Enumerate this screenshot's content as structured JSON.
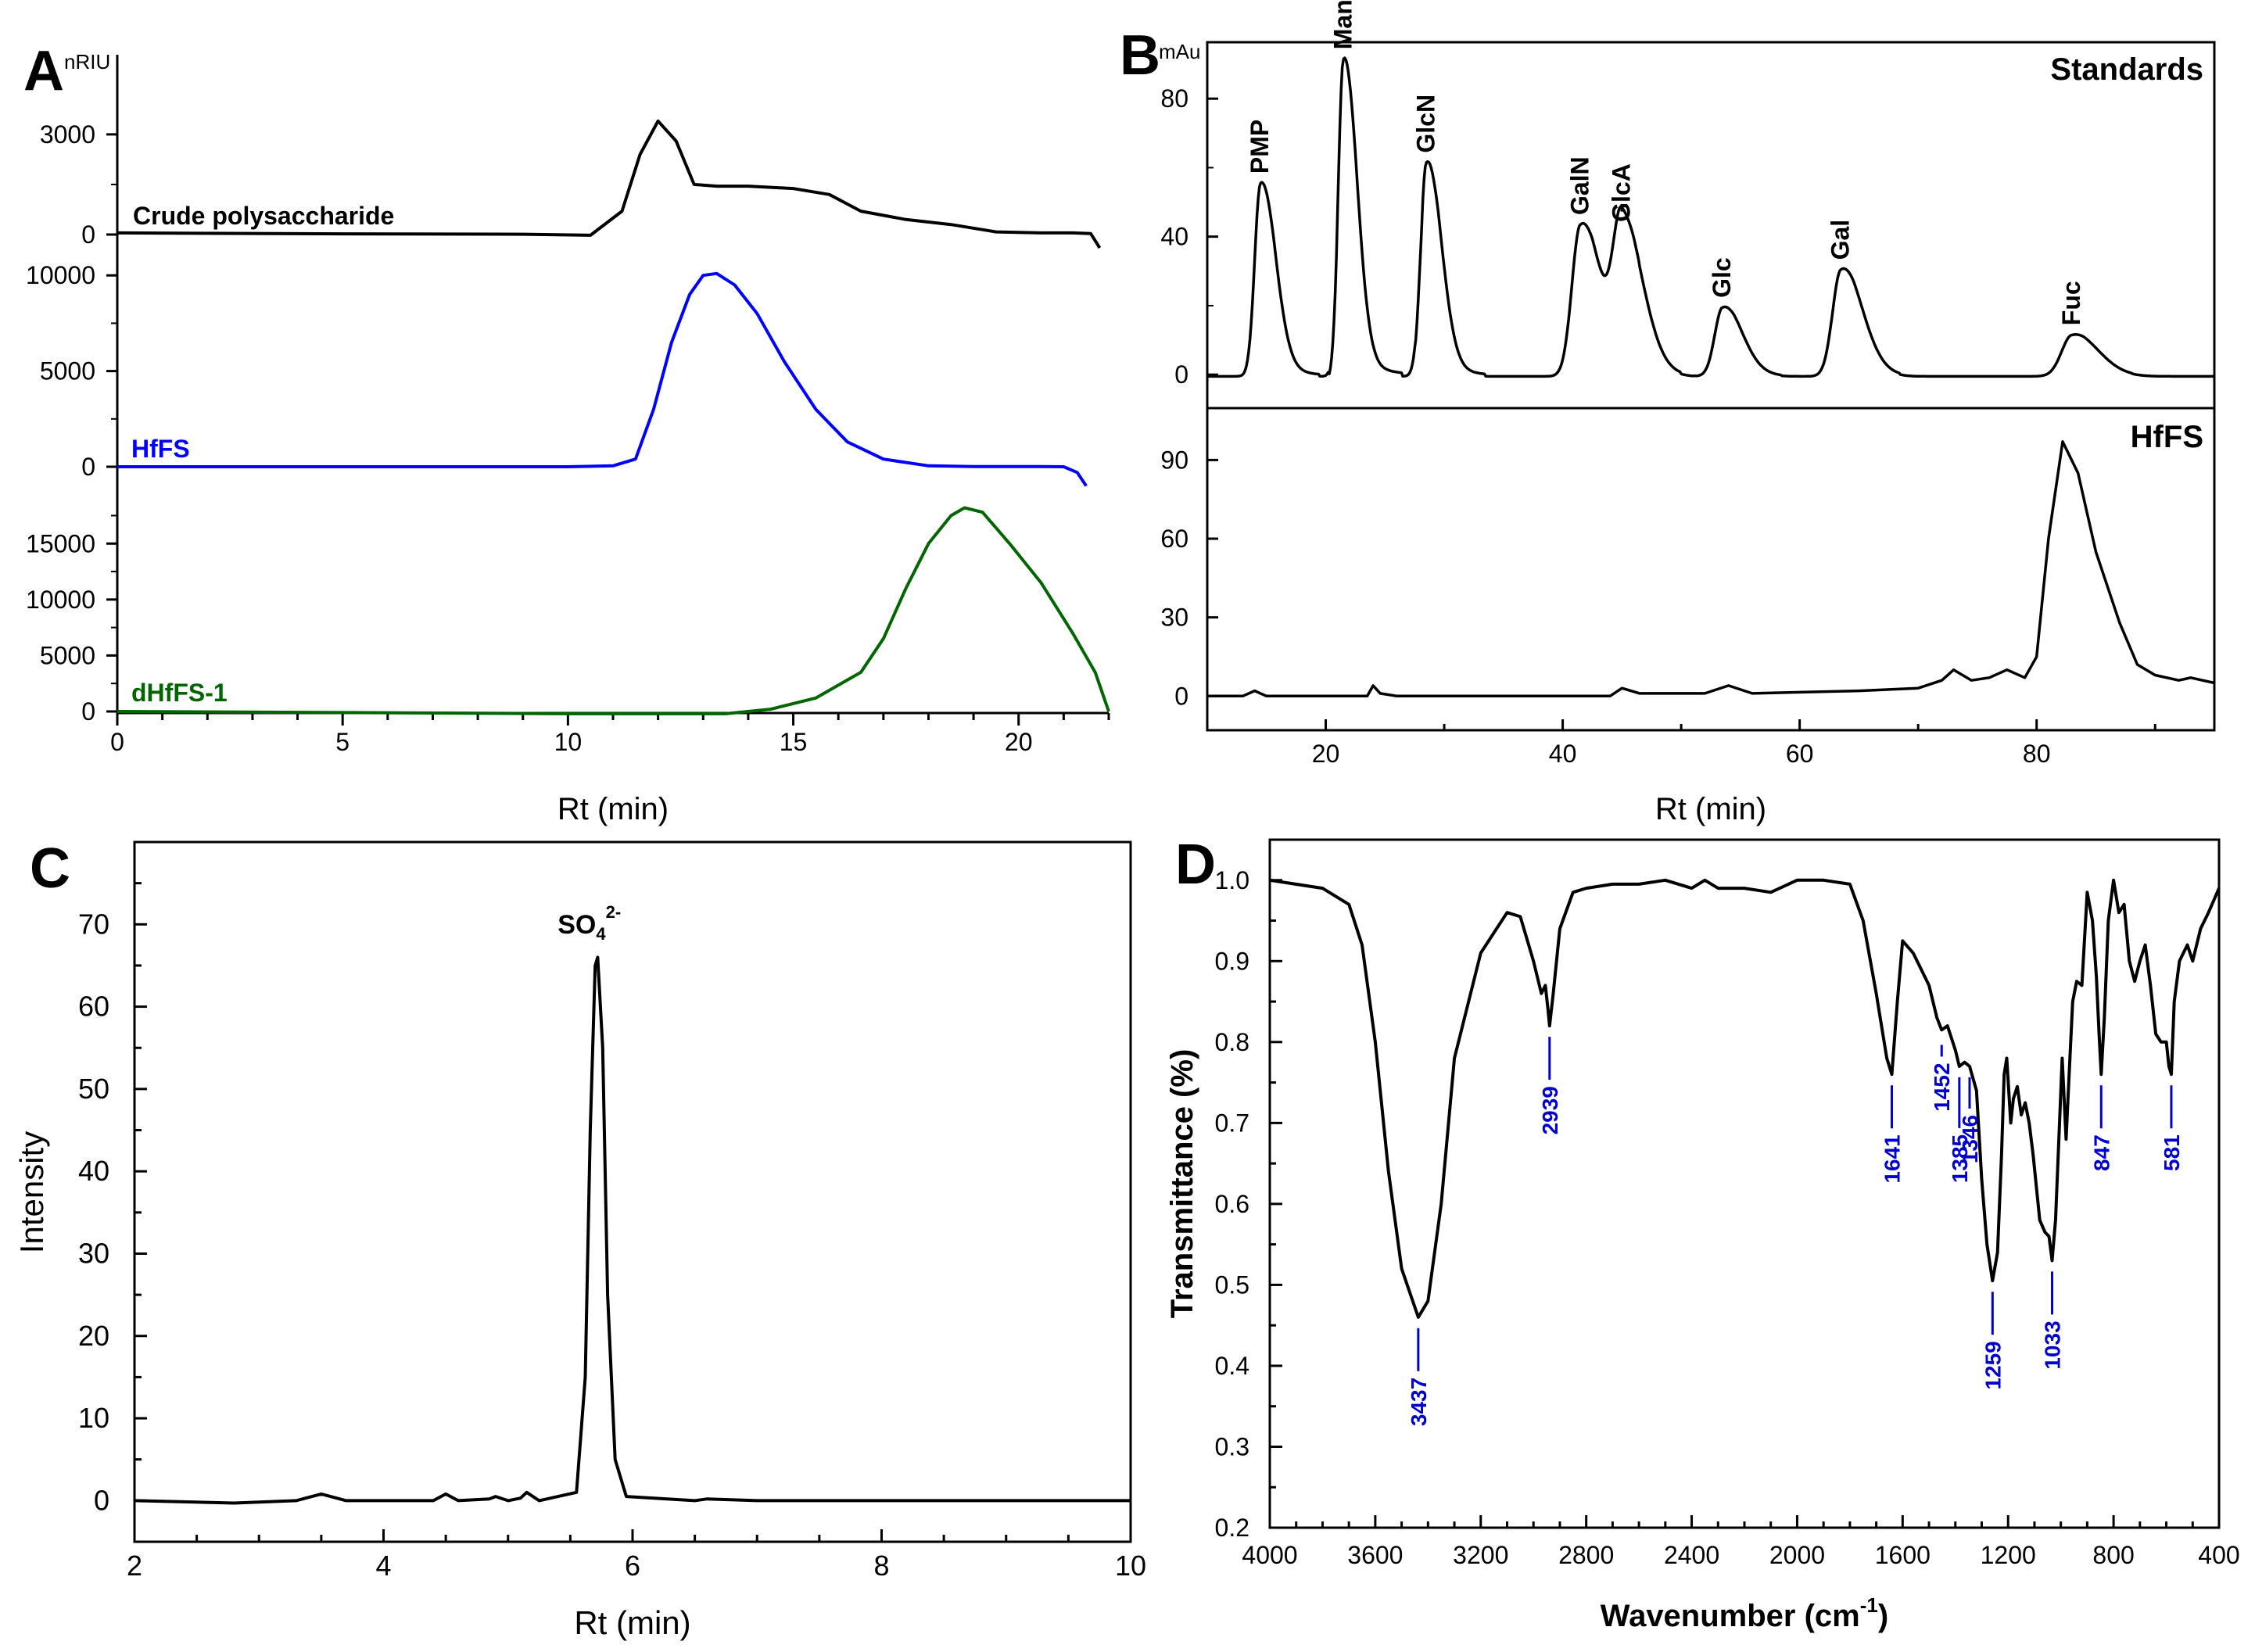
{
  "panels": {
    "A": {
      "letter": "A",
      "unit": "nRIU"
    },
    "B": {
      "letter": "B",
      "unit": "mAu"
    },
    "C": {
      "letter": "C"
    },
    "D": {
      "letter": "D"
    }
  },
  "colors": {
    "black": "#000000",
    "blue": "#0000ff",
    "green": "#006400",
    "peak_label_blue": "#0000cc"
  },
  "chart_data": [
    {
      "id": "A",
      "type": "line",
      "xlabel": "Rt (min)",
      "xlim": [
        0,
        22
      ],
      "xticks": [
        "0",
        "5",
        "10",
        "15",
        "20"
      ],
      "tracks": [
        {
          "name": "Crude polysaccharide",
          "color": "#000000",
          "ylim": [
            0,
            3700
          ],
          "yticks": [
            "0",
            "3000"
          ],
          "ytick_values": [
            0,
            3000
          ],
          "x": [
            0,
            5,
            9,
            10.5,
            11.2,
            11.6,
            12.0,
            12.4,
            12.8,
            13.3,
            14,
            15,
            15.8,
            16.5,
            17.5,
            18.5,
            19.5,
            20.5,
            21.2,
            21.6,
            21.8
          ],
          "y": [
            50,
            20,
            10,
            -20,
            700,
            2400,
            3400,
            2800,
            1500,
            1450,
            1450,
            1380,
            1200,
            700,
            450,
            300,
            80,
            50,
            50,
            30,
            -400
          ]
        },
        {
          "name": "HfFS",
          "color": "#0000ff",
          "ylim": [
            0,
            10500
          ],
          "yticks": [
            "0",
            "5000",
            "10000"
          ],
          "ytick_values": [
            0,
            5000,
            10000
          ],
          "x": [
            0,
            5,
            10,
            11.0,
            11.5,
            11.9,
            12.3,
            12.7,
            13.0,
            13.3,
            13.7,
            14.2,
            14.8,
            15.5,
            16.2,
            17,
            18,
            19,
            20.5,
            21.0,
            21.3,
            21.5
          ],
          "y": [
            0,
            0,
            0,
            50,
            400,
            3000,
            6500,
            9000,
            10000,
            10100,
            9500,
            8000,
            5500,
            3000,
            1300,
            400,
            50,
            10,
            10,
            0,
            -300,
            -1000
          ]
        },
        {
          "name": "dHfFS-1",
          "color": "#006400",
          "ylim": [
            0,
            19000
          ],
          "yticks": [
            "0",
            "5000",
            "10000",
            "15000"
          ],
          "ytick_values": [
            0,
            5000,
            10000,
            15000
          ],
          "x": [
            0,
            5,
            10,
            13.5,
            14.5,
            15.5,
            16.5,
            17.0,
            17.5,
            18.0,
            18.5,
            18.8,
            19.2,
            19.8,
            20.5,
            21.2,
            21.7,
            22.0
          ],
          "y": [
            0,
            -100,
            -200,
            -200,
            200,
            1200,
            3500,
            6500,
            11000,
            15000,
            17500,
            18200,
            17800,
            15000,
            11500,
            7000,
            3500,
            0
          ]
        }
      ]
    },
    {
      "id": "B",
      "type": "line",
      "xlabel": "Rt (min)",
      "xlim": [
        10,
        95
      ],
      "xticks": [
        "20",
        "40",
        "60",
        "80"
      ],
      "xtick_values": [
        20,
        40,
        60,
        80
      ],
      "tracks": [
        {
          "name": "Standards",
          "ylim": [
            -2,
            95
          ],
          "yticks": [
            "0",
            "40",
            "80"
          ],
          "ytick_values": [
            0,
            40,
            80
          ],
          "peaks": [
            {
              "label": "PMP",
              "x": 14.5,
              "y": 56
            },
            {
              "label": "Man",
              "x": 21.5,
              "y": 92
            },
            {
              "label": "GlcN",
              "x": 28.5,
              "y": 62
            },
            {
              "label": "GalN",
              "x": 41.5,
              "y": 44
            },
            {
              "label": "GlcA",
              "x": 45.0,
              "y": 42
            },
            {
              "label": "Glc",
              "x": 53.5,
              "y": 20
            },
            {
              "label": "Gal",
              "x": 63.5,
              "y": 31
            },
            {
              "label": "Fuc",
              "x": 83.0,
              "y": 12
            }
          ]
        },
        {
          "name": "HfFS",
          "ylim": [
            -2,
            108
          ],
          "yticks": [
            "0",
            "30",
            "60",
            "90"
          ],
          "ytick_values": [
            0,
            30,
            60,
            90
          ],
          "x": [
            10,
            13,
            14,
            15,
            20,
            23.5,
            24,
            24.6,
            26,
            40,
            44,
            45,
            46.5,
            52,
            54,
            56,
            65,
            70,
            72,
            73,
            74.5,
            76,
            77.5,
            79,
            80,
            81,
            82.2,
            83.5,
            85,
            87,
            88.5,
            90,
            92,
            93,
            95
          ],
          "y": [
            0,
            0,
            2,
            0,
            0,
            0,
            4,
            1,
            0,
            0,
            0,
            3,
            1,
            1,
            4,
            1,
            2,
            3,
            6,
            10,
            6,
            7,
            10,
            7,
            15,
            60,
            97,
            85,
            55,
            28,
            12,
            8,
            6,
            7,
            5
          ]
        }
      ]
    },
    {
      "id": "C",
      "type": "line",
      "xlabel": "Rt (min)",
      "ylabel": "Intensity",
      "xlim": [
        2,
        10
      ],
      "ylim": [
        -5,
        80
      ],
      "xticks": [
        "2",
        "4",
        "6",
        "8",
        "10"
      ],
      "xtick_values": [
        2,
        4,
        6,
        8,
        10
      ],
      "yticks": [
        "0",
        "10",
        "20",
        "30",
        "40",
        "50",
        "60",
        "70"
      ],
      "ytick_values": [
        0,
        10,
        20,
        30,
        40,
        50,
        60,
        70
      ],
      "annotation": {
        "base": "SO",
        "sub": "4",
        "sup": "2-",
        "x": 5.7,
        "y": 67
      },
      "x": [
        2,
        2.8,
        3.3,
        3.5,
        3.7,
        4.4,
        4.5,
        4.6,
        4.85,
        4.9,
        5.0,
        5.1,
        5.15,
        5.25,
        5.55,
        5.62,
        5.66,
        5.7,
        5.72,
        5.76,
        5.8,
        5.86,
        5.95,
        6.5,
        6.6,
        7,
        8,
        10
      ],
      "y": [
        0,
        -0.3,
        0,
        0.8,
        0,
        0,
        0.8,
        0,
        0.2,
        0.5,
        0,
        0.3,
        1.0,
        0,
        1,
        15,
        45,
        65,
        66,
        55,
        25,
        5,
        0.5,
        0,
        0.2,
        0,
        0,
        0
      ]
    },
    {
      "id": "D",
      "type": "line",
      "xlabel_base": "Wavenumber (cm",
      "xlabel_sup": "-1",
      "xlabel_end": ")",
      "ylabel": "Transmittance (%)",
      "xlim": [
        4000,
        400
      ],
      "ylim": [
        0.2,
        1.05
      ],
      "xticks": [
        "4000",
        "3600",
        "3200",
        "2800",
        "2400",
        "2000",
        "1600",
        "1200",
        "800",
        "400"
      ],
      "xtick_values": [
        4000,
        3600,
        3200,
        2800,
        2400,
        2000,
        1600,
        1200,
        800,
        400
      ],
      "yticks": [
        "0.2",
        "0.3",
        "0.4",
        "0.5",
        "0.6",
        "0.7",
        "0.8",
        "0.9",
        "1.0"
      ],
      "ytick_values": [
        0.2,
        0.3,
        0.4,
        0.5,
        0.6,
        0.7,
        0.8,
        0.9,
        1.0
      ],
      "peak_labels": [
        {
          "label": "3437",
          "x": 3437,
          "y": 0.46
        },
        {
          "label": "2939",
          "x": 2939,
          "y": 0.82
        },
        {
          "label": "1641",
          "x": 1641,
          "y": 0.76
        },
        {
          "label": "1452",
          "x": 1452,
          "y": 0.81
        },
        {
          "label": "1385",
          "x": 1385,
          "y": 0.77
        },
        {
          "label": "1346",
          "x": 1346,
          "y": 0.77
        },
        {
          "label": "1259",
          "x": 1259,
          "y": 0.505
        },
        {
          "label": "1033",
          "x": 1033,
          "y": 0.53
        },
        {
          "label": "847",
          "x": 847,
          "y": 0.76
        },
        {
          "label": "581",
          "x": 581,
          "y": 0.76
        }
      ],
      "x": [
        4000,
        3800,
        3700,
        3650,
        3600,
        3550,
        3500,
        3437,
        3400,
        3350,
        3300,
        3200,
        3100,
        3050,
        3000,
        2970,
        2955,
        2945,
        2939,
        2925,
        2900,
        2850,
        2800,
        2700,
        2600,
        2500,
        2400,
        2350,
        2300,
        2200,
        2100,
        2000,
        1900,
        1800,
        1750,
        1700,
        1660,
        1641,
        1620,
        1600,
        1560,
        1500,
        1470,
        1452,
        1430,
        1400,
        1385,
        1365,
        1346,
        1320,
        1300,
        1280,
        1259,
        1240,
        1225,
        1215,
        1205,
        1190,
        1180,
        1165,
        1150,
        1135,
        1120,
        1105,
        1080,
        1060,
        1045,
        1033,
        1020,
        1005,
        995,
        980,
        970,
        955,
        940,
        920,
        900,
        880,
        865,
        855,
        847,
        835,
        820,
        800,
        780,
        760,
        740,
        720,
        700,
        680,
        660,
        640,
        620,
        600,
        590,
        581,
        570,
        550,
        520,
        500,
        470,
        440,
        420,
        400
      ],
      "y": [
        1.0,
        0.99,
        0.97,
        0.92,
        0.8,
        0.64,
        0.52,
        0.46,
        0.48,
        0.6,
        0.78,
        0.91,
        0.96,
        0.955,
        0.9,
        0.86,
        0.87,
        0.84,
        0.82,
        0.86,
        0.94,
        0.985,
        0.99,
        0.995,
        0.995,
        1.0,
        0.99,
        1.0,
        0.99,
        0.99,
        0.985,
        1.0,
        1.0,
        0.995,
        0.95,
        0.86,
        0.78,
        0.76,
        0.85,
        0.925,
        0.91,
        0.87,
        0.83,
        0.815,
        0.82,
        0.79,
        0.77,
        0.775,
        0.77,
        0.74,
        0.63,
        0.55,
        0.505,
        0.54,
        0.66,
        0.76,
        0.78,
        0.7,
        0.73,
        0.745,
        0.71,
        0.725,
        0.7,
        0.66,
        0.58,
        0.565,
        0.56,
        0.53,
        0.58,
        0.7,
        0.78,
        0.68,
        0.75,
        0.85,
        0.875,
        0.87,
        0.985,
        0.95,
        0.88,
        0.81,
        0.76,
        0.83,
        0.95,
        1.0,
        0.96,
        0.97,
        0.9,
        0.875,
        0.9,
        0.92,
        0.87,
        0.81,
        0.8,
        0.8,
        0.77,
        0.76,
        0.85,
        0.9,
        0.92,
        0.9,
        0.94,
        0.96,
        0.975,
        0.99
      ]
    }
  ]
}
